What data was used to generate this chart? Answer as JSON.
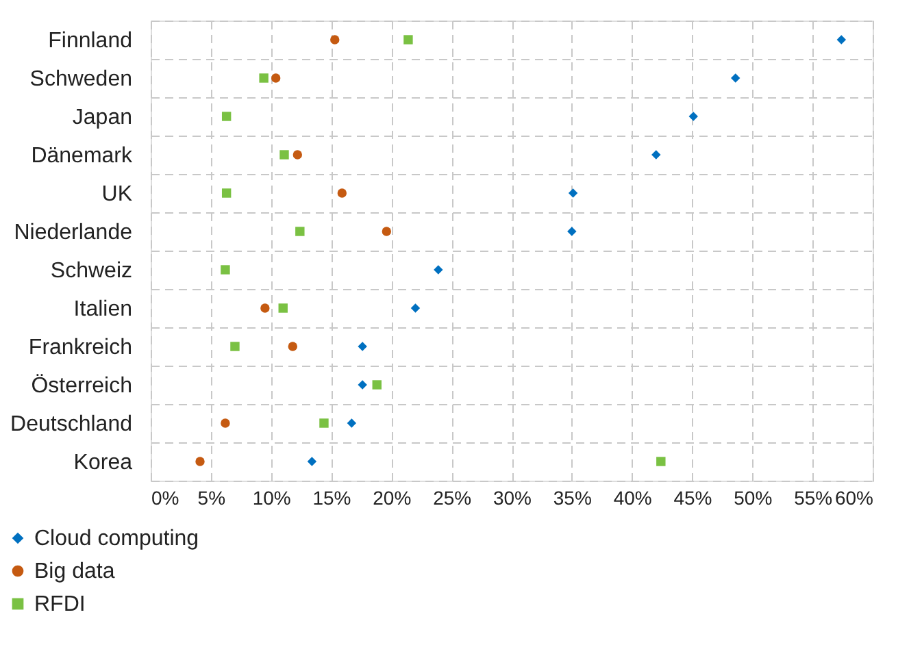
{
  "chart_data": {
    "type": "scatter",
    "orientation": "horizontal",
    "categories": [
      "Finnland",
      "Schweden",
      "Japan",
      "Dänemark",
      "UK",
      "Niederlande",
      "Schweiz",
      "Italien",
      "Frankreich",
      "Österreich",
      "Deutschland",
      "Korea"
    ],
    "series": [
      {
        "name": "Cloud  computing",
        "color": "#0070c0",
        "marker": "diamond",
        "values": [
          57.4,
          48.6,
          45.1,
          42.0,
          35.1,
          35.0,
          23.9,
          22.0,
          17.6,
          17.6,
          16.7,
          13.4
        ]
      },
      {
        "name": "Big data",
        "color": "#c55a11",
        "marker": "circle",
        "values": [
          15.3,
          10.4,
          null,
          12.2,
          15.9,
          19.6,
          null,
          9.5,
          11.8,
          null,
          6.2,
          4.1
        ]
      },
      {
        "name": "RFDI",
        "color": "#7ac143",
        "marker": "square",
        "values": [
          21.4,
          9.4,
          6.3,
          11.1,
          6.3,
          12.4,
          6.2,
          11.0,
          7.0,
          18.8,
          14.4,
          42.4
        ]
      }
    ],
    "xlim": [
      0,
      60
    ],
    "xticks": [
      {
        "value": 0,
        "label": "0%"
      },
      {
        "value": 5,
        "label": "5%"
      },
      {
        "value": 10,
        "label": "10%"
      },
      {
        "value": 15,
        "label": "15%"
      },
      {
        "value": 20,
        "label": "20%"
      },
      {
        "value": 25,
        "label": "25%"
      },
      {
        "value": 30,
        "label": "30%"
      },
      {
        "value": 35,
        "label": "35%"
      },
      {
        "value": 40,
        "label": "40%"
      },
      {
        "value": 45,
        "label": "45%"
      },
      {
        "value": 50,
        "label": "50%"
      },
      {
        "value": 55,
        "label": "55%"
      },
      {
        "value": 60,
        "label": "60%"
      }
    ],
    "grid": true,
    "legend": "bottom left"
  }
}
